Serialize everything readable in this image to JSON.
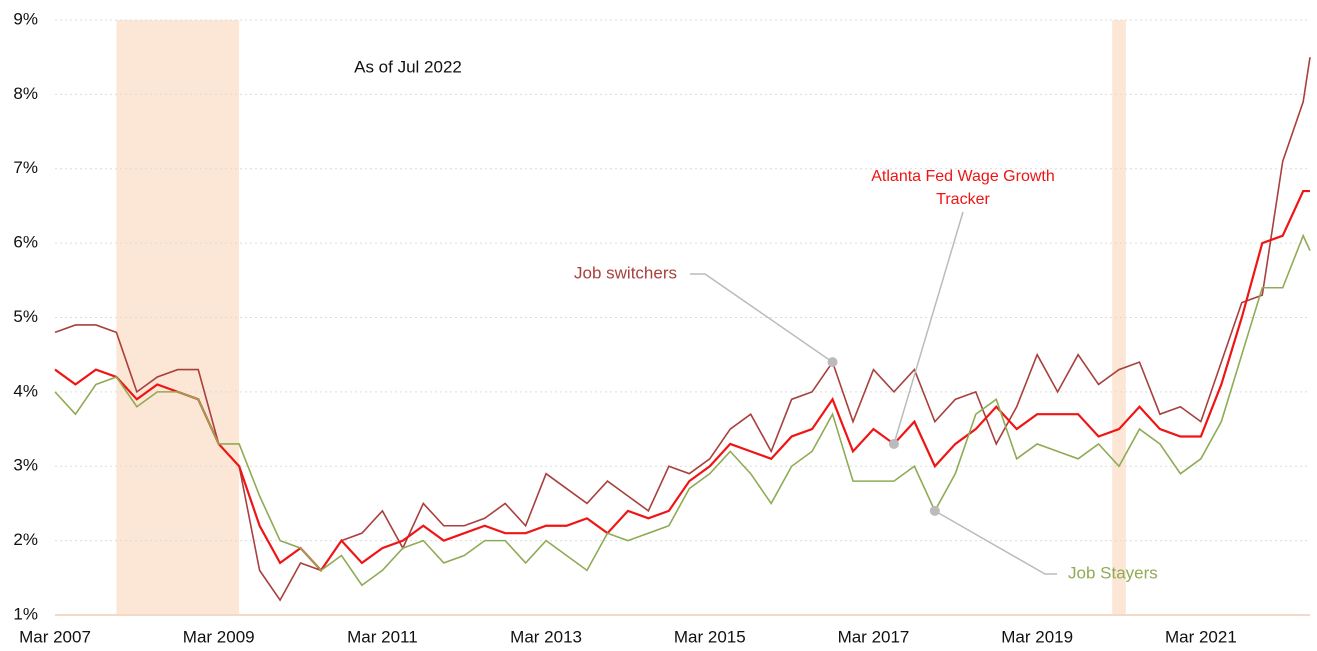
{
  "chart_data": {
    "type": "line",
    "annotation": "As of Jul 2022",
    "x": [
      "2007-03",
      "2007-06",
      "2007-09",
      "2007-12",
      "2008-03",
      "2008-06",
      "2008-09",
      "2008-12",
      "2009-03",
      "2009-06",
      "2009-09",
      "2009-12",
      "2010-03",
      "2010-06",
      "2010-09",
      "2010-12",
      "2011-03",
      "2011-06",
      "2011-09",
      "2011-12",
      "2012-03",
      "2012-06",
      "2012-09",
      "2012-12",
      "2013-03",
      "2013-06",
      "2013-09",
      "2013-12",
      "2014-03",
      "2014-06",
      "2014-09",
      "2014-12",
      "2015-03",
      "2015-06",
      "2015-09",
      "2015-12",
      "2016-03",
      "2016-06",
      "2016-09",
      "2016-12",
      "2017-03",
      "2017-06",
      "2017-09",
      "2017-12",
      "2018-03",
      "2018-06",
      "2018-09",
      "2018-12",
      "2019-03",
      "2019-06",
      "2019-09",
      "2019-12",
      "2020-03",
      "2020-06",
      "2020-09",
      "2020-12",
      "2021-03",
      "2021-06",
      "2021-09",
      "2021-12",
      "2022-03",
      "2022-06",
      "2022-07"
    ],
    "series": [
      {
        "name": "Job switchers",
        "color": "#a8403d",
        "values": [
          4.8,
          4.9,
          4.9,
          4.8,
          4.0,
          4.2,
          4.3,
          4.3,
          3.3,
          3.0,
          1.6,
          1.2,
          1.7,
          1.6,
          2.0,
          2.1,
          2.4,
          1.9,
          2.5,
          2.2,
          2.2,
          2.3,
          2.5,
          2.2,
          2.9,
          2.7,
          2.5,
          2.8,
          2.6,
          2.4,
          3.0,
          2.9,
          3.1,
          3.5,
          3.7,
          3.2,
          3.9,
          4.0,
          4.4,
          3.6,
          4.3,
          4.0,
          4.3,
          3.6,
          3.9,
          4.0,
          3.3,
          3.8,
          4.5,
          4.0,
          4.5,
          4.1,
          4.3,
          4.4,
          3.7,
          3.8,
          3.6,
          4.4,
          5.2,
          5.3,
          7.1,
          7.9,
          8.5
        ]
      },
      {
        "name": "Atlanta Fed Wage Growth Tracker",
        "color": "#f01414",
        "values": [
          4.3,
          4.1,
          4.3,
          4.2,
          3.9,
          4.1,
          4.0,
          3.9,
          3.3,
          3.0,
          2.2,
          1.7,
          1.9,
          1.6,
          2.0,
          1.7,
          1.9,
          2.0,
          2.2,
          2.0,
          2.1,
          2.2,
          2.1,
          2.1,
          2.2,
          2.2,
          2.3,
          2.1,
          2.4,
          2.3,
          2.4,
          2.8,
          3.0,
          3.3,
          3.2,
          3.1,
          3.4,
          3.5,
          3.9,
          3.2,
          3.5,
          3.3,
          3.6,
          3.0,
          3.3,
          3.5,
          3.8,
          3.5,
          3.7,
          3.7,
          3.7,
          3.4,
          3.5,
          3.8,
          3.5,
          3.4,
          3.4,
          4.1,
          5.0,
          6.0,
          6.1,
          6.7,
          6.7
        ]
      },
      {
        "name": "Job Stayers",
        "color": "#8fab55",
        "values": [
          4.0,
          3.7,
          4.1,
          4.2,
          3.8,
          4.0,
          4.0,
          3.9,
          3.3,
          3.3,
          2.6,
          2.0,
          1.9,
          1.6,
          1.8,
          1.4,
          1.6,
          1.9,
          2.0,
          1.7,
          1.8,
          2.0,
          2.0,
          1.7,
          2.0,
          1.8,
          1.6,
          2.1,
          2.0,
          2.1,
          2.2,
          2.7,
          2.9,
          3.2,
          2.9,
          2.5,
          3.0,
          3.2,
          3.7,
          2.8,
          2.8,
          2.8,
          3.0,
          2.4,
          2.9,
          3.7,
          3.9,
          3.1,
          3.3,
          3.2,
          3.1,
          3.3,
          3.0,
          3.5,
          3.3,
          2.9,
          3.1,
          3.6,
          4.5,
          5.4,
          5.4,
          6.1,
          5.9
        ]
      }
    ],
    "shaded_periods": [
      [
        "2007-12",
        "2009-06"
      ],
      [
        "2020-02",
        "2020-04"
      ]
    ],
    "shade_color": "#fce6d6",
    "xlim": [
      "2007-03",
      "2022-07"
    ],
    "xticks": [
      {
        "value": "2007-03",
        "label": "Mar 2007"
      },
      {
        "value": "2009-03",
        "label": "Mar 2009"
      },
      {
        "value": "2011-03",
        "label": "Mar 2011"
      },
      {
        "value": "2013-03",
        "label": "Mar 2013"
      },
      {
        "value": "2015-03",
        "label": "Mar 2015"
      },
      {
        "value": "2017-03",
        "label": "Mar 2017"
      },
      {
        "value": "2019-03",
        "label": "Mar 2019"
      },
      {
        "value": "2021-03",
        "label": "Mar 2021"
      }
    ],
    "ylim": [
      1,
      9
    ],
    "yticks": [
      {
        "value": 1,
        "label": "1%"
      },
      {
        "value": 2,
        "label": "2%"
      },
      {
        "value": 3,
        "label": "3%"
      },
      {
        "value": 4,
        "label": "4%"
      },
      {
        "value": 5,
        "label": "5%"
      },
      {
        "value": 6,
        "label": "6%"
      },
      {
        "value": 7,
        "label": "7%"
      },
      {
        "value": 8,
        "label": "8%"
      },
      {
        "value": 9,
        "label": "9%"
      }
    ],
    "grid": true
  }
}
